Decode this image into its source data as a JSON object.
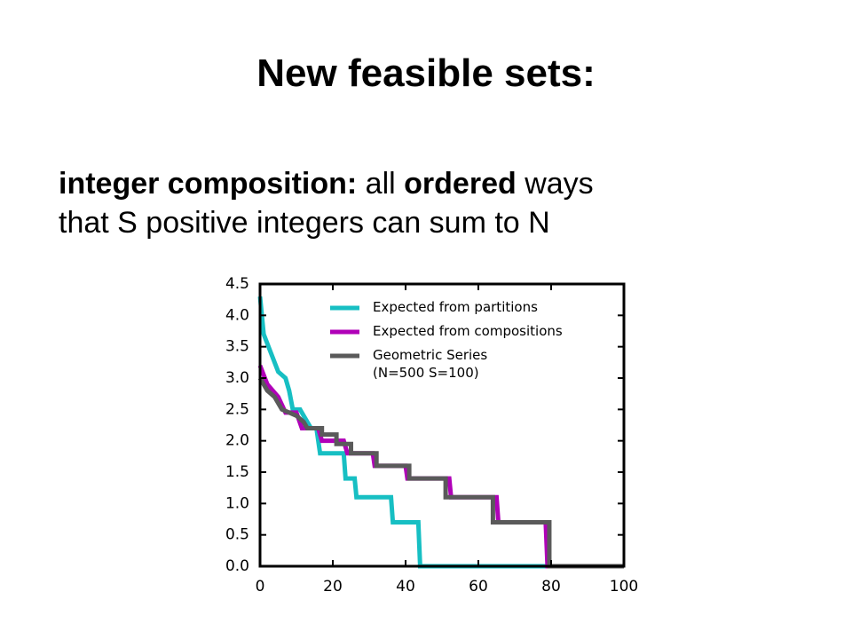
{
  "title": "New feasible sets:",
  "body": {
    "lines": [
      [
        {
          "text": "integer composition:",
          "bold": true
        },
        {
          "text": " all ",
          "bold": false
        },
        {
          "text": "ordered",
          "bold": true
        },
        {
          "text": " ways",
          "bold": false
        }
      ],
      [
        {
          "text": "that S positive integers can sum to N",
          "bold": false
        }
      ]
    ]
  },
  "chart_data": {
    "type": "line",
    "xlim": [
      0,
      100
    ],
    "xticks": [
      0,
      20,
      40,
      60,
      80,
      100
    ],
    "ylim": [
      0,
      4.5
    ],
    "yticks": [
      {
        "value": 0,
        "label": "0.0"
      },
      0.5,
      {
        "value": 1,
        "label": "1.0"
      },
      1.5,
      {
        "value": 2,
        "label": "2.0"
      },
      2.5,
      {
        "value": 3,
        "label": "3.0"
      },
      3.5,
      {
        "value": 4,
        "label": "4.0"
      },
      4.5
    ],
    "legend": "upper right",
    "series": [
      {
        "name": "Expected from partitions",
        "color": "#17bfc3",
        "x": [
          0,
          1,
          3,
          5,
          7,
          8,
          9,
          11,
          13,
          14,
          15.5,
          16,
          16.5,
          23,
          23.5,
          26,
          26.5,
          36,
          36.5,
          43.5,
          44,
          100
        ],
        "values": [
          4.3,
          3.7,
          3.4,
          3.1,
          3.0,
          2.8,
          2.5,
          2.5,
          2.3,
          2.2,
          2.2,
          2.0,
          1.8,
          1.8,
          1.4,
          1.4,
          1.1,
          1.1,
          0.7,
          0.7,
          0,
          0
        ]
      },
      {
        "name": "Expected from compositions",
        "color": "#b000b8",
        "x": [
          0,
          2,
          5,
          7,
          10,
          11.5,
          16,
          17,
          23,
          24,
          31,
          31.5,
          40,
          40.5,
          52,
          52.5,
          65,
          65.5,
          78.5,
          79,
          100
        ],
        "values": [
          3.2,
          2.9,
          2.7,
          2.45,
          2.45,
          2.2,
          2.2,
          2.0,
          2.0,
          1.8,
          1.8,
          1.6,
          1.6,
          1.4,
          1.4,
          1.1,
          1.1,
          0.7,
          0.7,
          0,
          0
        ]
      },
      {
        "name": "Geometric Series\n(N=500 S=100)",
        "color": "#5a5a5a",
        "x": [
          0,
          2,
          4,
          6,
          8,
          10,
          12,
          13,
          17,
          17,
          21,
          21,
          25,
          25,
          32,
          32,
          41,
          41,
          51,
          51,
          64,
          64,
          79.5,
          79.5,
          100
        ],
        "values": [
          3.0,
          2.8,
          2.7,
          2.5,
          2.45,
          2.4,
          2.3,
          2.2,
          2.2,
          2.1,
          2.1,
          1.95,
          1.95,
          1.8,
          1.8,
          1.6,
          1.6,
          1.4,
          1.4,
          1.1,
          1.1,
          0.7,
          0.7,
          0,
          0
        ]
      }
    ]
  }
}
